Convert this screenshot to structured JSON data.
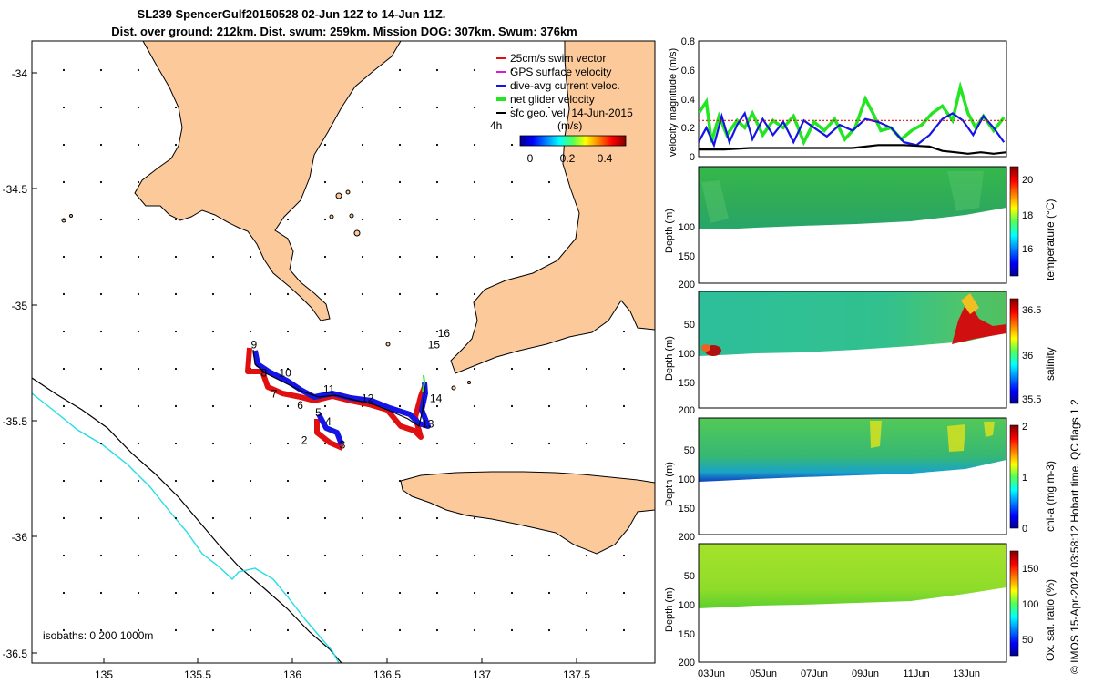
{
  "figure": {
    "title_line1": "SL239 SpencerGulf20150528 02-Jun 12Z to 14-Jun 11Z.",
    "title_line2": "Dist. over ground: 212km. Dist. swum: 259km. Mission DOG: 307km. Swum: 376km",
    "footer": "© IMOS 15-Apr-2024 03:58:12 Hobart time. QC flags 1  2"
  },
  "colors": {
    "land": "#fbc99a",
    "track_red": "#e01010",
    "track_blue": "#1414e6",
    "green": "#22e622",
    "black": "#000000",
    "cyan": "#22dde6",
    "magenta": "#d020d0"
  },
  "map": {
    "x_ticks": [
      "135",
      "135.5",
      "136",
      "136.5",
      "137",
      "137.5"
    ],
    "y_ticks": [
      "-34",
      "-34.5",
      "-35",
      "-35.5",
      "-36",
      "-36.5"
    ],
    "legend": [
      {
        "label": "25cm/s swim vector",
        "color": "#e01010"
      },
      {
        "label": "GPS surface velocity",
        "color": "#d020d0"
      },
      {
        "label": "dive-avg current veloc.",
        "color": "#1414e6"
      },
      {
        "label": "net glider velocity",
        "color": "#22e622"
      },
      {
        "label": "sfc geo. vel. 14-Jun-2015",
        "color": "#000000"
      }
    ],
    "colorbar_title": "(m/s)",
    "colorbar_prefix": "4h",
    "colorbar_ticks": [
      "0",
      "0.2",
      "0.4"
    ],
    "isobaths_label": "isobaths: 0   200  1000m",
    "waypoints": [
      "2",
      "3",
      "4",
      "5",
      "6",
      "7",
      "8",
      "9",
      "10",
      "11",
      "12",
      "13",
      "14",
      "15",
      "16"
    ]
  },
  "panels": {
    "velocity": {
      "ylabel": "velocity magnitude (m/s)",
      "y_ticks": [
        "0",
        "0.2",
        "0.4",
        "0.6",
        "0.8"
      ]
    },
    "depth_ylabel": "Depth (m)",
    "depth_ticks": [
      "50",
      "100",
      "150",
      "200"
    ],
    "temperature": {
      "label": "temperature (°C)",
      "ticks": [
        "16",
        "18",
        "20"
      ]
    },
    "salinity": {
      "label": "salinity",
      "ticks": [
        "35.5",
        "36",
        "36.5"
      ]
    },
    "chla": {
      "label": "chl-a (mg m-3)",
      "ticks": [
        "0",
        "1",
        "2"
      ]
    },
    "oxygen": {
      "label": "Ox. sat. ratio (%)",
      "ticks": [
        "50",
        "100",
        "150"
      ]
    },
    "x_ticks": [
      "03Jun",
      "05Jun",
      "07Jun",
      "09Jun",
      "11Jun",
      "13Jun"
    ]
  },
  "chart_data": [
    {
      "type": "scatter",
      "title": "SL239 SpencerGulf20150528 02-Jun 12Z to 14-Jun 11Z.",
      "xlabel": "longitude",
      "ylabel": "latitude",
      "xlim": [
        134.8,
        137.9
      ],
      "ylim": [
        -36.53,
        -33.86
      ],
      "track": [
        [
          135.78,
          -35.23
        ],
        [
          135.85,
          -35.35
        ],
        [
          135.95,
          -35.38
        ],
        [
          136.05,
          -35.42
        ],
        [
          136.15,
          -35.45
        ],
        [
          136.25,
          -35.47
        ],
        [
          136.35,
          -35.5
        ],
        [
          136.45,
          -35.53
        ],
        [
          136.55,
          -35.55
        ],
        [
          136.62,
          -35.55
        ],
        [
          136.68,
          -35.4
        ]
      ],
      "waypoint_labels": [
        {
          "text": "2",
          "lon": 136.14,
          "lat": -35.59
        },
        {
          "text": "3",
          "lon": 136.33,
          "lat": -35.61
        },
        {
          "text": "4",
          "lon": 136.26,
          "lat": -35.51
        },
        {
          "text": "5",
          "lon": 136.21,
          "lat": -35.47
        },
        {
          "text": "6",
          "lon": 136.12,
          "lat": -35.44
        },
        {
          "text": "7",
          "lon": 135.99,
          "lat": -35.39
        },
        {
          "text": "8",
          "lon": 135.94,
          "lat": -35.3
        },
        {
          "text": "9",
          "lon": 135.89,
          "lat": -35.18
        },
        {
          "text": "10",
          "lon": 136.03,
          "lat": -35.3
        },
        {
          "text": "11",
          "lon": 136.25,
          "lat": -35.37
        },
        {
          "text": "12",
          "lon": 136.44,
          "lat": -35.41
        },
        {
          "text": "13",
          "lon": 136.74,
          "lat": -35.52
        },
        {
          "text": "14",
          "lon": 136.78,
          "lat": -35.41
        },
        {
          "text": "15",
          "lon": 136.77,
          "lat": -35.18
        },
        {
          "text": "16",
          "lon": 136.82,
          "lat": -35.13
        }
      ]
    },
    {
      "type": "line",
      "ylabel": "velocity magnitude (m/s)",
      "ylim": [
        0,
        0.8
      ],
      "xlim": [
        2.5,
        14.5
      ],
      "series": [
        {
          "name": "net glider velocity",
          "color": "#22e622",
          "x": [
            2.5,
            2.8,
            3.0,
            3.3,
            3.6,
            4.0,
            4.3,
            4.6,
            5.0,
            5.4,
            5.8,
            6.2,
            6.6,
            7.0,
            7.4,
            7.8,
            8.2,
            8.6,
            9.0,
            9.3,
            9.6,
            10.0,
            10.4,
            10.8,
            11.2,
            11.6,
            12.0,
            12.4,
            12.7,
            13.0,
            13.3,
            13.6,
            14.0,
            14.4
          ],
          "y": [
            0.3,
            0.38,
            0.1,
            0.28,
            0.15,
            0.25,
            0.2,
            0.3,
            0.15,
            0.25,
            0.2,
            0.28,
            0.1,
            0.24,
            0.18,
            0.26,
            0.12,
            0.2,
            0.4,
            0.3,
            0.18,
            0.2,
            0.12,
            0.18,
            0.22,
            0.3,
            0.35,
            0.25,
            0.48,
            0.3,
            0.2,
            0.28,
            0.18,
            0.27
          ]
        },
        {
          "name": "dive-avg current veloc.",
          "color": "#1414e6",
          "x": [
            2.5,
            2.8,
            3.1,
            3.4,
            3.7,
            4.0,
            4.3,
            4.6,
            5.0,
            5.4,
            5.8,
            6.2,
            6.6,
            7.0,
            7.5,
            8.0,
            8.5,
            9.0,
            9.5,
            10.0,
            10.5,
            11.0,
            11.5,
            12.0,
            12.4,
            12.8,
            13.2,
            13.6,
            14.0,
            14.4
          ],
          "y": [
            0.1,
            0.2,
            0.08,
            0.28,
            0.1,
            0.22,
            0.3,
            0.12,
            0.26,
            0.15,
            0.24,
            0.1,
            0.25,
            0.2,
            0.14,
            0.22,
            0.18,
            0.26,
            0.24,
            0.2,
            0.1,
            0.08,
            0.15,
            0.26,
            0.3,
            0.25,
            0.15,
            0.28,
            0.2,
            0.1
          ]
        },
        {
          "name": "25cm/s swim vector",
          "color": "#e01010",
          "x": [
            2.5,
            14.5
          ],
          "y": [
            0.25,
            0.25
          ]
        },
        {
          "name": "sfc geo. vel.",
          "color": "#000000",
          "x": [
            2.5,
            3.5,
            4.5,
            5.5,
            6.5,
            7.5,
            8.5,
            9.5,
            10.5,
            11.5,
            12.0,
            12.5,
            13.0,
            13.5,
            14.0,
            14.5
          ],
          "y": [
            0.05,
            0.05,
            0.06,
            0.06,
            0.06,
            0.06,
            0.06,
            0.08,
            0.08,
            0.07,
            0.04,
            0.03,
            0.02,
            0.03,
            0.02,
            0.03
          ]
        }
      ]
    },
    {
      "type": "heatmap",
      "ylabel": "Depth (m)",
      "ylim": [
        200,
        0
      ],
      "colorbar_label": "temperature (°C)",
      "clim": [
        15,
        20.5
      ]
    },
    {
      "type": "heatmap",
      "ylabel": "Depth (m)",
      "ylim": [
        200,
        0
      ],
      "colorbar_label": "salinity",
      "clim": [
        35.45,
        36.6
      ]
    },
    {
      "type": "heatmap",
      "ylabel": "Depth (m)",
      "ylim": [
        200,
        0
      ],
      "colorbar_label": "chl-a (mg m-3)",
      "clim": [
        0,
        2
      ]
    },
    {
      "type": "heatmap",
      "ylabel": "Depth (m)",
      "ylim": [
        200,
        0
      ],
      "colorbar_label": "Ox. sat. ratio (%)",
      "clim": [
        20,
        175
      ]
    }
  ]
}
